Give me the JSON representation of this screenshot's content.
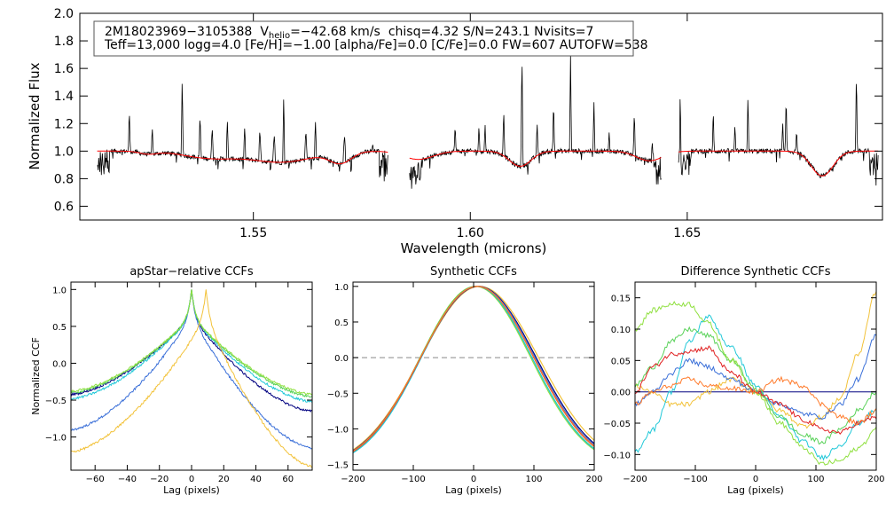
{
  "chart_data": [
    {
      "type": "line",
      "name": "spectrum",
      "xlabel": "Wavelength (microns)",
      "ylabel": "Normalized Flux",
      "xlim": [
        1.51,
        1.695
      ],
      "ylim": [
        0.5,
        2.0
      ],
      "xticks": [
        1.55,
        1.6,
        1.65
      ],
      "xtick_labels": [
        "1.55",
        "1.60",
        "1.65"
      ],
      "yticks": [
        0.6,
        0.8,
        1.0,
        1.2,
        1.4,
        1.6,
        1.8,
        2.0
      ],
      "ytick_labels": [
        "0.6",
        "0.8",
        "1.0",
        "1.2",
        "1.4",
        "1.6",
        "1.8",
        "2.0"
      ],
      "annotation": {
        "star_id": "2M18023969−3105388",
        "v_prefix": "V",
        "v_sub": "helio",
        "v_value": "=−42.68 km/s",
        "stats": "chisq=4.32  S/N=243.1  Nvisits=7",
        "line2": "Teff=13,000 logg=4.0 [Fe/H]=−1.00 [alpha/Fe]=0.0 [C/Fe]=0.0 FW=607 AUTOFW=538"
      },
      "chips": [
        [
          1.514,
          1.581
        ],
        [
          1.586,
          1.644
        ],
        [
          1.648,
          1.694
        ]
      ],
      "emission_lines": [
        {
          "x": 1.5214,
          "h": 1.32
        },
        {
          "x": 1.5267,
          "h": 1.18
        },
        {
          "x": 1.5336,
          "h": 1.56
        },
        {
          "x": 1.5377,
          "h": 1.28
        },
        {
          "x": 1.5405,
          "h": 1.18
        },
        {
          "x": 1.544,
          "h": 1.23
        },
        {
          "x": 1.548,
          "h": 1.18
        },
        {
          "x": 1.5515,
          "h": 1.16
        },
        {
          "x": 1.5548,
          "h": 1.12
        },
        {
          "x": 1.557,
          "h": 1.4
        },
        {
          "x": 1.5621,
          "h": 1.16
        },
        {
          "x": 1.5643,
          "h": 1.22
        },
        {
          "x": 1.571,
          "h": 1.12
        },
        {
          "x": 1.5775,
          "h": 1.05
        },
        {
          "x": 1.5965,
          "h": 1.2
        },
        {
          "x": 1.602,
          "h": 1.19
        },
        {
          "x": 1.6034,
          "h": 1.2
        },
        {
          "x": 1.6077,
          "h": 1.31
        },
        {
          "x": 1.6119,
          "h": 1.74
        },
        {
          "x": 1.6154,
          "h": 1.21
        },
        {
          "x": 1.6192,
          "h": 1.38
        },
        {
          "x": 1.6231,
          "h": 1.72
        },
        {
          "x": 1.6285,
          "h": 1.37
        },
        {
          "x": 1.632,
          "h": 1.14
        },
        {
          "x": 1.6378,
          "h": 1.3
        },
        {
          "x": 1.642,
          "h": 1.07
        },
        {
          "x": 1.6484,
          "h": 1.5
        },
        {
          "x": 1.656,
          "h": 1.32
        },
        {
          "x": 1.661,
          "h": 1.2
        },
        {
          "x": 1.664,
          "h": 1.42
        },
        {
          "x": 1.672,
          "h": 1.22
        },
        {
          "x": 1.6728,
          "h": 1.42
        },
        {
          "x": 1.6752,
          "h": 1.16
        },
        {
          "x": 1.689,
          "h": 1.61
        }
      ],
      "absorption_features": [
        {
          "x": 1.5258,
          "depth": 0.02,
          "width": 0.002
        },
        {
          "x": 1.54,
          "depth": 0.05,
          "width": 0.006
        },
        {
          "x": 1.5564,
          "depth": 0.08,
          "width": 0.007
        },
        {
          "x": 1.5701,
          "depth": 0.08,
          "width": 0.0025
        },
        {
          "x": 1.588,
          "depth": 0.06,
          "width": 0.0035
        },
        {
          "x": 1.6115,
          "depth": 0.11,
          "width": 0.0025
        },
        {
          "x": 1.6413,
          "depth": 0.07,
          "width": 0.003
        },
        {
          "x": 1.6811,
          "depth": 0.18,
          "width": 0.0025
        }
      ],
      "series": [
        {
          "name": "observed",
          "color": "#000000"
        },
        {
          "name": "model",
          "color": "#ff0000"
        }
      ]
    },
    {
      "type": "line",
      "name": "apstar-ccf",
      "title": "apStar−relative CCFs",
      "xlabel": "Lag (pixels)",
      "ylabel": "Normalized CCF",
      "xlim": [
        -75,
        75
      ],
      "ylim": [
        -1.45,
        1.1
      ],
      "xticks": [
        -60,
        -40,
        -20,
        0,
        20,
        40,
        60
      ],
      "xtick_labels": [
        "−60",
        "−40",
        "−20",
        "0",
        "20",
        "40",
        "60"
      ],
      "yticks": [
        -1.0,
        -0.5,
        0.0,
        0.5,
        1.0
      ],
      "ytick_labels": [
        "−1.0",
        "−0.5",
        "0.0",
        "0.5",
        "1.0"
      ],
      "series": [
        {
          "name": "navy",
          "color": "#000080",
          "left": -0.42,
          "right": -0.65,
          "peak": 0,
          "width": 18
        },
        {
          "name": "blue",
          "color": "#3a6fd8",
          "left": -0.9,
          "right": -1.15,
          "peak": 0,
          "width": 26
        },
        {
          "name": "cyan",
          "color": "#20c8d8",
          "left": -0.48,
          "right": -0.52,
          "peak": 0,
          "width": 20
        },
        {
          "name": "lime",
          "color": "#5ad25a",
          "left": -0.4,
          "right": -0.45,
          "peak": 0,
          "width": 20
        },
        {
          "name": "green",
          "color": "#90e040",
          "left": -0.38,
          "right": -0.42,
          "peak": 0,
          "width": 22
        },
        {
          "name": "gold",
          "color": "#f2c23a",
          "left": -1.2,
          "right": -1.4,
          "peak": 9,
          "width": 30
        }
      ]
    },
    {
      "type": "line",
      "name": "synthetic-ccf",
      "title": "Synthetic CCFs",
      "xlabel": "Lag (pixels)",
      "xlim": [
        -200,
        200
      ],
      "ylim": [
        -1.58,
        1.06
      ],
      "xticks": [
        -200,
        -100,
        0,
        100,
        200
      ],
      "xtick_labels": [
        "−200",
        "−100",
        "0",
        "100",
        "200"
      ],
      "yticks": [
        -1.5,
        -1.0,
        -0.5,
        0.0,
        0.5,
        1.0
      ],
      "ytick_labels": [
        "−1.5",
        "−1.0",
        "−0.5",
        "0.0",
        "0.5",
        "1.0"
      ],
      "zero_line": 0.0,
      "series": [
        {
          "name": "gold",
          "color": "#f2c23a",
          "center": 10,
          "sigma": 98
        },
        {
          "name": "navy",
          "color": "#000080",
          "center": 8,
          "sigma": 96
        },
        {
          "name": "blue",
          "color": "#3a6fd8",
          "center": 7,
          "sigma": 95
        },
        {
          "name": "green",
          "color": "#90e040",
          "center": 3,
          "sigma": 92
        },
        {
          "name": "lime",
          "color": "#5ad25a",
          "center": 4,
          "sigma": 93
        },
        {
          "name": "cyan",
          "color": "#20c8d8",
          "center": 5,
          "sigma": 92
        },
        {
          "name": "red",
          "color": "#e02020",
          "center": 6,
          "sigma": 94
        },
        {
          "name": "orange",
          "color": "#ff7a2a",
          "center": 6,
          "sigma": 94.5
        }
      ]
    },
    {
      "type": "line",
      "name": "difference-ccf",
      "title": "Difference Synthetic CCFs",
      "xlabel": "Lag (pixels)",
      "xlim": [
        -200,
        200
      ],
      "ylim": [
        -0.125,
        0.175
      ],
      "xticks": [
        -200,
        -100,
        0,
        100,
        200
      ],
      "xtick_labels": [
        "−200",
        "−100",
        "0",
        "100",
        "200"
      ],
      "yticks": [
        -0.1,
        -0.05,
        0.0,
        0.05,
        0.1,
        0.15
      ],
      "ytick_labels": [
        "−0.10",
        "−0.05",
        "0.00",
        "0.05",
        "0.10",
        "0.15"
      ],
      "series": [
        {
          "name": "navy",
          "color": "#000080",
          "points": [
            [
              -200,
              0
            ],
            [
              200,
              0
            ]
          ]
        },
        {
          "name": "gold",
          "color": "#f2c23a",
          "points": [
            [
              -200,
              0.01
            ],
            [
              -175,
              0.0
            ],
            [
              -140,
              -0.02
            ],
            [
              -110,
              -0.02
            ],
            [
              -80,
              0.0
            ],
            [
              -40,
              0.02
            ],
            [
              0,
              0.0
            ],
            [
              40,
              -0.03
            ],
            [
              80,
              -0.055
            ],
            [
              110,
              -0.04
            ],
            [
              140,
              -0.01
            ],
            [
              170,
              0.06
            ],
            [
              200,
              0.16
            ]
          ]
        },
        {
          "name": "blue",
          "color": "#3a6fd8",
          "points": [
            [
              -200,
              -0.02
            ],
            [
              -170,
              0.0
            ],
            [
              -140,
              0.03
            ],
            [
              -110,
              0.05
            ],
            [
              -80,
              0.04
            ],
            [
              -40,
              0.02
            ],
            [
              0,
              0.0
            ],
            [
              40,
              -0.02
            ],
            [
              80,
              -0.035
            ],
            [
              110,
              -0.04
            ],
            [
              140,
              -0.02
            ],
            [
              170,
              0.02
            ],
            [
              200,
              0.09
            ]
          ]
        },
        {
          "name": "cyan",
          "color": "#20c8d8",
          "points": [
            [
              -200,
              -0.095
            ],
            [
              -170,
              -0.06
            ],
            [
              -140,
              0.0
            ],
            [
              -110,
              0.08
            ],
            [
              -80,
              0.12
            ],
            [
              -40,
              0.07
            ],
            [
              0,
              0.01
            ],
            [
              40,
              -0.04
            ],
            [
              80,
              -0.08
            ],
            [
              110,
              -0.105
            ],
            [
              140,
              -0.085
            ],
            [
              170,
              -0.05
            ],
            [
              200,
              -0.03
            ]
          ]
        },
        {
          "name": "lime",
          "color": "#5ad25a",
          "points": [
            [
              -200,
              0.01
            ],
            [
              -170,
              0.04
            ],
            [
              -140,
              0.08
            ],
            [
              -110,
              0.1
            ],
            [
              -80,
              0.09
            ],
            [
              -40,
              0.05
            ],
            [
              0,
              0.005
            ],
            [
              40,
              -0.04
            ],
            [
              80,
              -0.07
            ],
            [
              110,
              -0.08
            ],
            [
              140,
              -0.06
            ],
            [
              170,
              -0.03
            ],
            [
              200,
              0.0
            ]
          ]
        },
        {
          "name": "green",
          "color": "#90e040",
          "points": [
            [
              -200,
              0.1
            ],
            [
              -170,
              0.13
            ],
            [
              -140,
              0.14
            ],
            [
              -110,
              0.14
            ],
            [
              -80,
              0.11
            ],
            [
              -40,
              0.05
            ],
            [
              0,
              0.0
            ],
            [
              40,
              -0.05
            ],
            [
              80,
              -0.09
            ],
            [
              110,
              -0.115
            ],
            [
              140,
              -0.11
            ],
            [
              170,
              -0.09
            ],
            [
              200,
              -0.06
            ]
          ]
        },
        {
          "name": "red",
          "color": "#e02020",
          "points": [
            [
              -200,
              0.0
            ],
            [
              -170,
              0.04
            ],
            [
              -140,
              0.06
            ],
            [
              -110,
              0.065
            ],
            [
              -80,
              0.07
            ],
            [
              -40,
              0.03
            ],
            [
              0,
              0.0
            ],
            [
              40,
              -0.02
            ],
            [
              80,
              -0.045
            ],
            [
              110,
              -0.06
            ],
            [
              140,
              -0.065
            ],
            [
              170,
              -0.05
            ],
            [
              200,
              -0.04
            ]
          ]
        },
        {
          "name": "orange",
          "color": "#ff7a2a",
          "points": [
            [
              -200,
              -0.02
            ],
            [
              -170,
              0.0
            ],
            [
              -140,
              0.01
            ],
            [
              -110,
              0.02
            ],
            [
              -80,
              0.01
            ],
            [
              -40,
              0.005
            ],
            [
              0,
              0.0
            ],
            [
              40,
              0.02
            ],
            [
              80,
              0.01
            ],
            [
              110,
              -0.02
            ],
            [
              140,
              -0.04
            ],
            [
              170,
              -0.05
            ],
            [
              200,
              -0.03
            ]
          ]
        }
      ]
    }
  ]
}
